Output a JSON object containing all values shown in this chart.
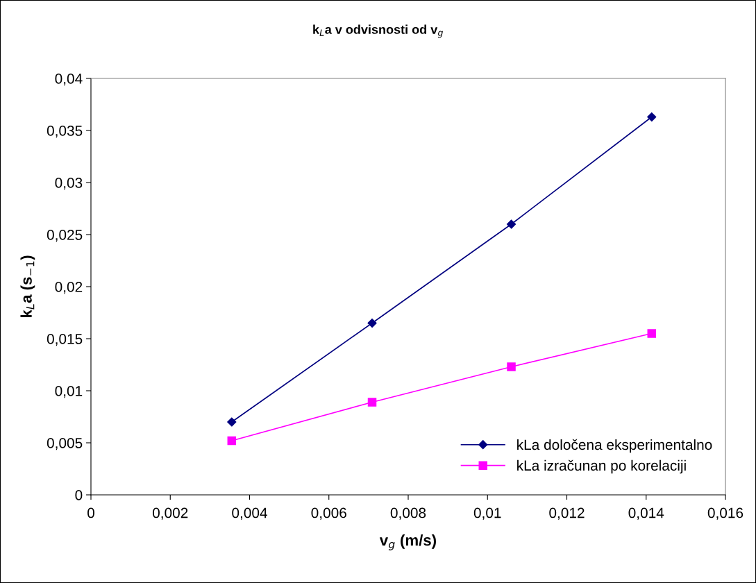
{
  "chart_data": {
    "type": "line",
    "title": "k$_{L}$a v odvisnosti od v$_{g}$",
    "xlabel": "v$_{g}$ (m/s)",
    "ylabel": "k$_{L}$a (s$_{−1}$)",
    "series": [
      {
        "name": "kLa določena eksperimentalno",
        "color": "#000080",
        "marker": "diamond",
        "x": [
          0.00355,
          0.00709,
          0.0106,
          0.01414
        ],
        "values": [
          0.007,
          0.0165,
          0.026,
          0.0363
        ]
      },
      {
        "name": "kLa izračunan po korelaciji",
        "color": "#ff00ff",
        "marker": "square",
        "x": [
          0.00355,
          0.00709,
          0.0106,
          0.01414
        ],
        "values": [
          0.0052,
          0.0089,
          0.0123,
          0.0155
        ]
      }
    ],
    "xlim": [
      0,
      0.016
    ],
    "xticks": [
      0,
      {
        "value": 0.002,
        "label": "0,002"
      },
      {
        "value": 0.004,
        "label": "0,004"
      },
      {
        "value": 0.006,
        "label": "0,006"
      },
      {
        "value": 0.008,
        "label": "0,008"
      },
      {
        "value": 0.01,
        "label": "0,01"
      },
      {
        "value": 0.012,
        "label": "0,012"
      },
      {
        "value": 0.014,
        "label": "0,014"
      },
      {
        "value": 0.016,
        "label": "0,016"
      }
    ],
    "ylim": [
      0,
      0.04
    ],
    "yticks": [
      0,
      {
        "value": 0.005,
        "label": "0,005"
      },
      {
        "value": 0.01,
        "label": "0,01"
      },
      {
        "value": 0.015,
        "label": "0,015"
      },
      {
        "value": 0.02,
        "label": "0,02"
      },
      {
        "value": 0.025,
        "label": "0,025"
      },
      {
        "value": 0.03,
        "label": "0,03"
      },
      {
        "value": 0.035,
        "label": "0,035"
      },
      {
        "value": 0.04,
        "label": "0,04"
      }
    ],
    "legend": "bottom right",
    "grid": false,
    "line_style": "solid"
  }
}
